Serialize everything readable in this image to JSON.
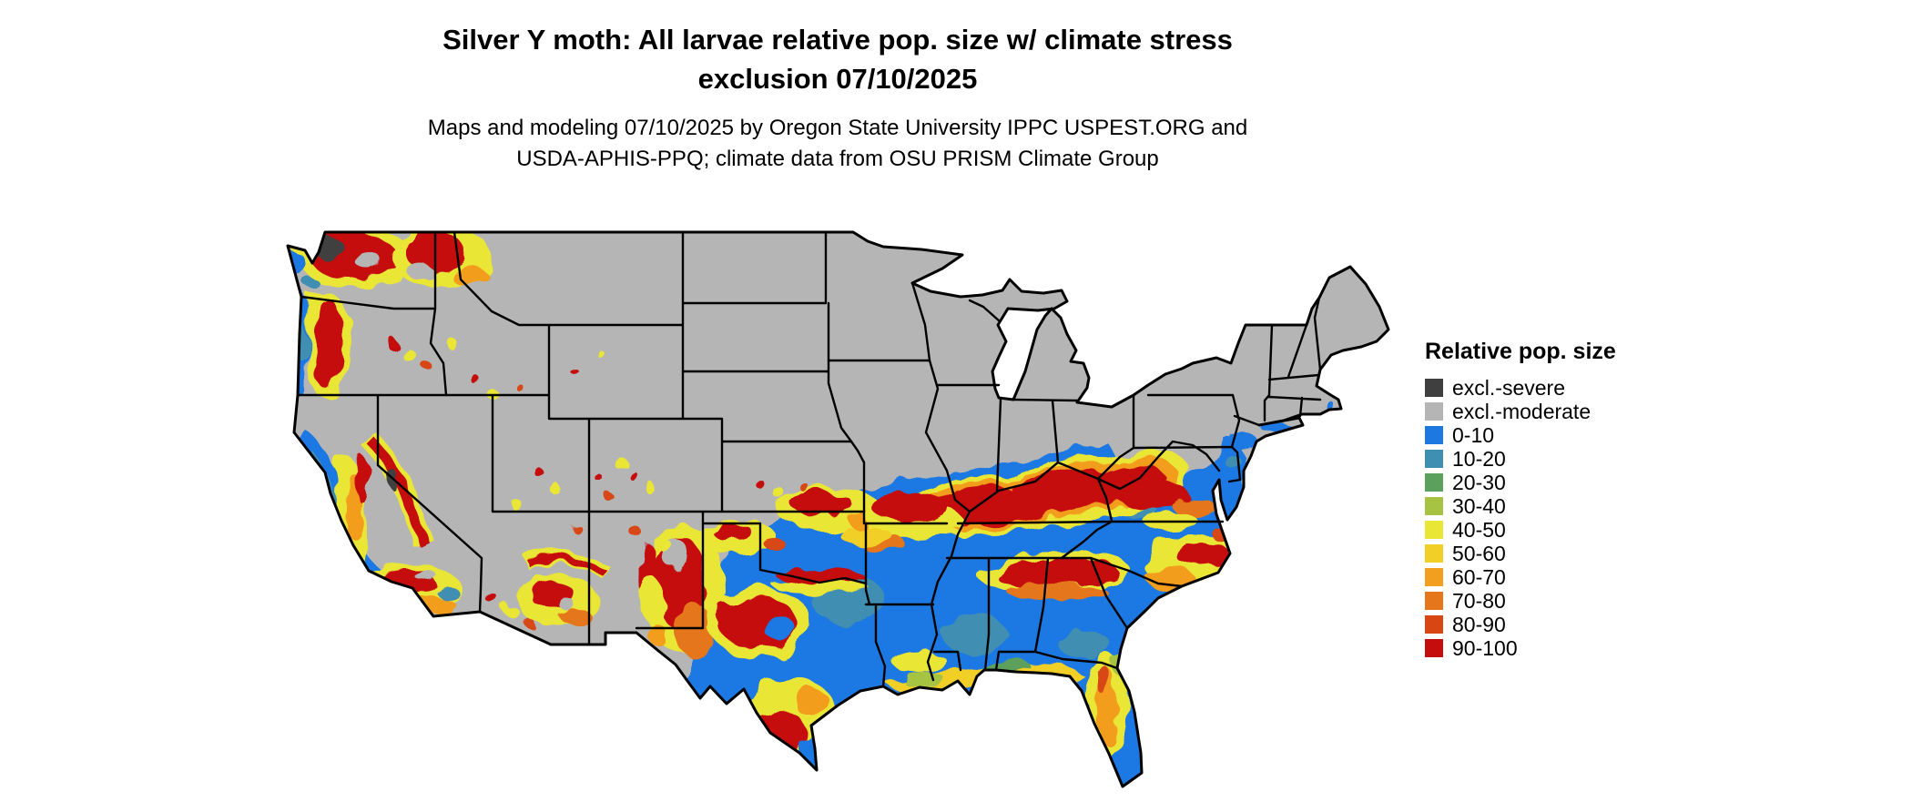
{
  "header": {
    "title_line1": "Silver Y moth: All larvae relative pop. size w/ climate stress",
    "title_line2": "exclusion 07/10/2025",
    "subtitle_line1": "Maps and modeling 07/10/2025 by Oregon State University IPPC USPEST.ORG and",
    "subtitle_line2": "USDA-APHIS-PPQ; climate data from OSU PRISM Climate Group"
  },
  "legend": {
    "title": "Relative pop. size",
    "items": [
      {
        "label": "excl.-severe",
        "key": "excl_severe"
      },
      {
        "label": "excl.-moderate",
        "key": "excl_moderate"
      },
      {
        "label": "0-10",
        "key": "b0_10"
      },
      {
        "label": "10-20",
        "key": "b10_20"
      },
      {
        "label": "20-30",
        "key": "g20_30"
      },
      {
        "label": "30-40",
        "key": "g30_40"
      },
      {
        "label": "40-50",
        "key": "y40_50"
      },
      {
        "label": "50-60",
        "key": "y50_60"
      },
      {
        "label": "60-70",
        "key": "o60_70"
      },
      {
        "label": "70-80",
        "key": "o70_80"
      },
      {
        "label": "80-90",
        "key": "r80_90"
      },
      {
        "label": "90-100",
        "key": "r90_100"
      }
    ]
  },
  "palette": {
    "excl_severe": "#3f3f3f",
    "excl_moderate": "#b5b5b5",
    "b0_10": "#1d78e2",
    "b10_20": "#3f8fb3",
    "g20_30": "#5ba05c",
    "g30_40": "#a6c343",
    "y40_50": "#e9e636",
    "y50_60": "#f2cf27",
    "o60_70": "#f29e1f",
    "o70_80": "#e5761c",
    "r80_90": "#d84614",
    "r90_100": "#c60d0e"
  },
  "map_data": {
    "type": "choropleth_raster",
    "region": "Conterminous United States",
    "classes": [
      "excl.-severe",
      "excl.-moderate",
      "0-10",
      "10-20",
      "20-30",
      "30-40",
      "40-50",
      "50-60",
      "60-70",
      "70-80",
      "80-90",
      "90-100"
    ],
    "legend_position": "right"
  }
}
